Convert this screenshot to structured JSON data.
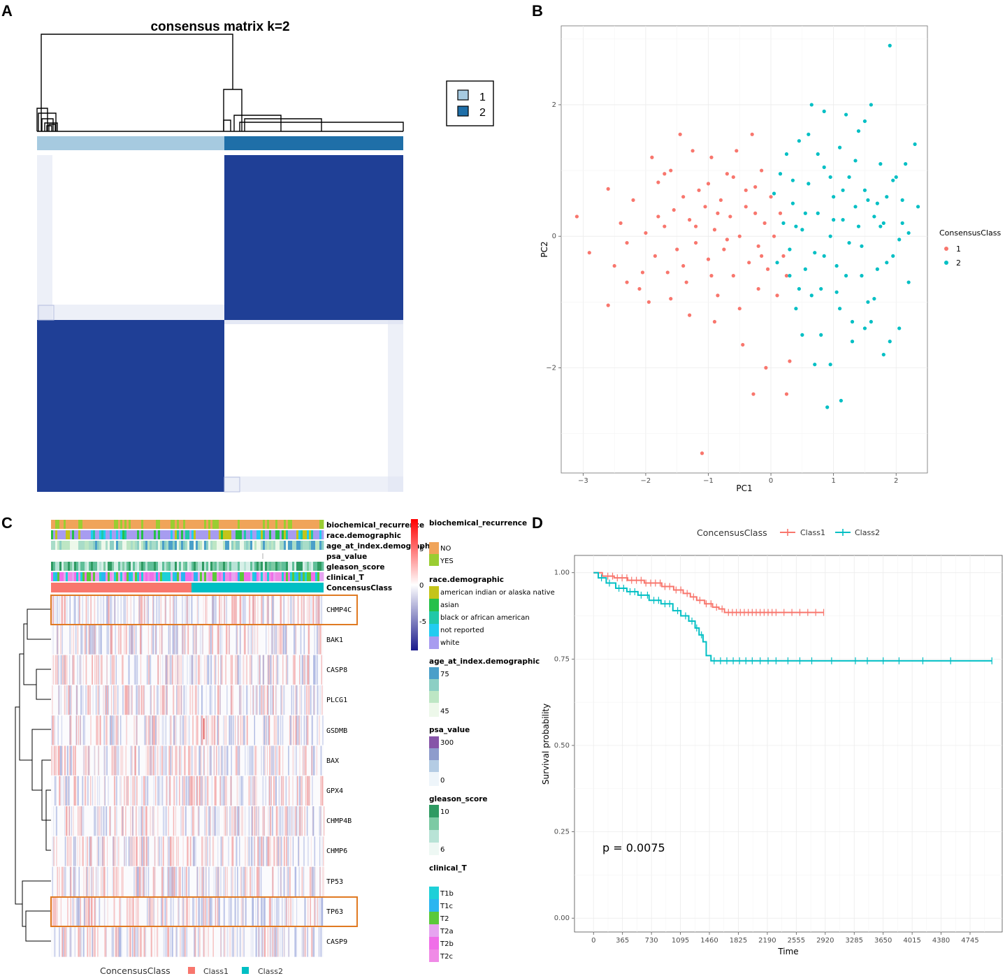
{
  "panel_labels": [
    "A",
    "B",
    "C",
    "D"
  ],
  "chart_data": [
    {
      "type": "heatmap",
      "panel": "A",
      "title": "consensus matrix k=2",
      "clusters": [
        "1",
        "2"
      ],
      "cluster_colors": [
        "#a6cae0",
        "#1f6fa8"
      ],
      "matrix_color": "#1f3f96",
      "consensus": [
        [
          0,
          1
        ],
        [
          1,
          0
        ]
      ],
      "legend": [
        "1",
        "2"
      ]
    },
    {
      "type": "scatter",
      "panel": "B",
      "xlabel": "PC1",
      "ylabel": "PC2",
      "xticks": [
        "-3",
        "-2",
        "-1",
        "0",
        "1",
        "2"
      ],
      "yticks": [
        "-2",
        "0",
        "2"
      ],
      "xlim": [
        -3.35,
        2.5
      ],
      "ylim": [
        -3.6,
        3.2
      ],
      "legend_title": "ConsensusClass",
      "series": [
        {
          "name": "1",
          "color": "#f8766d",
          "points": [
            [
              -3.1,
              0.3
            ],
            [
              -2.9,
              -0.25
            ],
            [
              -2.6,
              0.72
            ],
            [
              -2.5,
              -0.45
            ],
            [
              -2.4,
              0.2
            ],
            [
              -2.3,
              -0.1
            ],
            [
              -2.2,
              0.55
            ],
            [
              -2.1,
              -0.8
            ],
            [
              -2.0,
              0.05
            ],
            [
              -1.9,
              1.2
            ],
            [
              -1.85,
              -0.3
            ],
            [
              -1.8,
              0.82
            ],
            [
              -1.7,
              0.15
            ],
            [
              -1.65,
              -0.55
            ],
            [
              -1.6,
              1.0
            ],
            [
              -1.55,
              0.4
            ],
            [
              -1.5,
              -0.2
            ],
            [
              -1.45,
              1.55
            ],
            [
              -1.4,
              0.6
            ],
            [
              -1.35,
              -0.7
            ],
            [
              -1.3,
              0.25
            ],
            [
              -1.25,
              1.3
            ],
            [
              -1.2,
              -0.1
            ],
            [
              -1.15,
              0.7
            ],
            [
              -1.1,
              -3.3
            ],
            [
              -1.05,
              0.45
            ],
            [
              -1.0,
              -0.35
            ],
            [
              -0.95,
              1.2
            ],
            [
              -0.9,
              0.1
            ],
            [
              -0.85,
              -0.9
            ],
            [
              -0.8,
              0.55
            ],
            [
              -0.75,
              -0.2
            ],
            [
              -0.7,
              0.95
            ],
            [
              -0.65,
              0.3
            ],
            [
              -0.6,
              -0.6
            ],
            [
              -0.55,
              1.3
            ],
            [
              -0.5,
              0.0
            ],
            [
              -0.45,
              -1.65
            ],
            [
              -0.4,
              0.7
            ],
            [
              -0.35,
              -0.4
            ],
            [
              -0.3,
              1.55
            ],
            [
              -0.28,
              -2.4
            ],
            [
              -0.25,
              0.35
            ],
            [
              -0.2,
              -0.8
            ],
            [
              -0.15,
              1.0
            ],
            [
              -0.1,
              0.2
            ],
            [
              -0.08,
              -2.0
            ],
            [
              -0.05,
              -0.5
            ],
            [
              0.0,
              0.6
            ],
            [
              0.05,
              0.0
            ],
            [
              0.1,
              -0.9
            ],
            [
              0.15,
              0.35
            ],
            [
              0.2,
              -0.3
            ],
            [
              -2.6,
              -1.05
            ],
            [
              -1.95,
              -1.0
            ],
            [
              -1.6,
              -0.95
            ],
            [
              -1.3,
              -1.2
            ],
            [
              -0.95,
              -0.6
            ],
            [
              -0.7,
              -0.05
            ],
            [
              -0.4,
              0.45
            ],
            [
              -0.2,
              -0.15
            ],
            [
              -0.6,
              0.9
            ],
            [
              -1.8,
              0.3
            ],
            [
              -2.3,
              -0.7
            ],
            [
              0.25,
              -0.6
            ],
            [
              0.3,
              -1.9
            ],
            [
              0.25,
              -2.4
            ],
            [
              -0.9,
              -1.3
            ],
            [
              -1.4,
              -0.45
            ],
            [
              -1.0,
              0.8
            ],
            [
              -0.5,
              -1.1
            ],
            [
              -0.25,
              0.75
            ],
            [
              -1.7,
              0.95
            ],
            [
              -2.05,
              -0.55
            ],
            [
              -1.2,
              0.15
            ],
            [
              -0.85,
              0.35
            ],
            [
              -0.15,
              -0.3
            ]
          ]
        },
        {
          "name": "2",
          "color": "#00bfc4",
          "points": [
            [
              0.05,
              0.65
            ],
            [
              0.1,
              -0.4
            ],
            [
              0.15,
              0.95
            ],
            [
              0.2,
              0.2
            ],
            [
              0.25,
              1.25
            ],
            [
              0.3,
              -0.2
            ],
            [
              0.35,
              0.5
            ],
            [
              0.4,
              -1.1
            ],
            [
              0.45,
              1.45
            ],
            [
              0.5,
              0.1
            ],
            [
              0.55,
              -0.5
            ],
            [
              0.6,
              0.8
            ],
            [
              0.65,
              2.0
            ],
            [
              0.7,
              -0.25
            ],
            [
              0.75,
              0.35
            ],
            [
              0.8,
              -1.5
            ],
            [
              0.85,
              1.05
            ],
            [
              0.9,
              -2.6
            ],
            [
              0.95,
              0.0
            ],
            [
              1.0,
              0.6
            ],
            [
              1.05,
              -0.85
            ],
            [
              1.1,
              1.35
            ],
            [
              1.12,
              -2.5
            ],
            [
              1.15,
              0.25
            ],
            [
              1.2,
              -0.6
            ],
            [
              1.25,
              0.9
            ],
            [
              1.3,
              -1.3
            ],
            [
              1.35,
              0.45
            ],
            [
              1.4,
              1.6
            ],
            [
              1.45,
              -0.15
            ],
            [
              1.5,
              0.7
            ],
            [
              1.55,
              -1.0
            ],
            [
              1.6,
              2.0
            ],
            [
              1.65,
              0.3
            ],
            [
              1.7,
              -0.5
            ],
            [
              1.75,
              1.1
            ],
            [
              1.8,
              -1.8
            ],
            [
              1.85,
              0.6
            ],
            [
              1.9,
              2.9
            ],
            [
              1.95,
              -0.3
            ],
            [
              2.0,
              0.9
            ],
            [
              2.05,
              -1.4
            ],
            [
              2.1,
              0.2
            ],
            [
              2.15,
              1.1
            ],
            [
              2.2,
              -0.7
            ],
            [
              2.3,
              1.4
            ],
            [
              2.35,
              0.45
            ],
            [
              0.35,
              0.85
            ],
            [
              0.55,
              0.35
            ],
            [
              0.75,
              1.25
            ],
            [
              0.95,
              0.9
            ],
            [
              1.15,
              0.7
            ],
            [
              1.35,
              1.15
            ],
            [
              1.55,
              0.55
            ],
            [
              1.75,
              0.15
            ],
            [
              1.95,
              0.85
            ],
            [
              0.45,
              -0.8
            ],
            [
              0.65,
              -0.9
            ],
            [
              0.85,
              -0.3
            ],
            [
              1.05,
              -0.45
            ],
            [
              1.25,
              -0.1
            ],
            [
              1.45,
              -0.6
            ],
            [
              1.65,
              -0.95
            ],
            [
              1.85,
              -0.4
            ],
            [
              2.05,
              -0.05
            ],
            [
              0.3,
              -0.6
            ],
            [
              0.5,
              -1.5
            ],
            [
              0.7,
              -1.95
            ],
            [
              0.95,
              -1.95
            ],
            [
              1.3,
              -1.6
            ],
            [
              1.6,
              -1.3
            ],
            [
              1.9,
              -1.6
            ],
            [
              0.6,
              1.55
            ],
            [
              0.85,
              1.9
            ],
            [
              1.2,
              1.85
            ],
            [
              1.5,
              1.75
            ],
            [
              1.8,
              0.2
            ],
            [
              2.2,
              0.05
            ],
            [
              0.4,
              0.15
            ],
            [
              1.0,
              0.25
            ],
            [
              1.4,
              0.15
            ],
            [
              1.7,
              0.5
            ],
            [
              2.1,
              0.55
            ],
            [
              1.1,
              -1.1
            ],
            [
              1.5,
              -1.4
            ],
            [
              0.8,
              -0.8
            ]
          ]
        }
      ]
    },
    {
      "type": "heatmap",
      "panel": "C",
      "genes": [
        "CHMP4C",
        "BAK1",
        "CASP8",
        "PLCG1",
        "GSDMB",
        "BAX",
        "GPX4",
        "CHMP4B",
        "CHMP6",
        "TP53",
        "TP63",
        "CASP9"
      ],
      "highlighted_genes": [
        "CHMP4C",
        "TP63"
      ],
      "annotation_tracks": [
        "biochemical_recurrence",
        "race.demographic",
        "age_at_index.demographic",
        "psa_value",
        "gleason_score",
        "clinical_T",
        "ConcensusClass"
      ],
      "colorbar_ticks": [
        "5",
        "0",
        "-5"
      ],
      "legends": {
        "biochemical_recurrence": {
          "title": "biochemical_recurrence",
          "items": [
            "NO",
            "YES"
          ],
          "colors": [
            "#f0a45a",
            "#9acd32"
          ]
        },
        "race": {
          "title": "race.demographic",
          "items": [
            "american indian or alaska native",
            "asian",
            "black or african american",
            "not reported",
            "white"
          ],
          "colors": [
            "#c4c41a",
            "#26c04a",
            "#20c8a8",
            "#22ccf0",
            "#a79cf0"
          ]
        },
        "age": {
          "title": "age_at_index.demographic",
          "labels": [
            "75",
            "45"
          ]
        },
        "psa": {
          "title": "psa_value",
          "labels": [
            "300",
            "0"
          ]
        },
        "gleason": {
          "title": "gleason_score",
          "labels": [
            "10",
            "6"
          ]
        },
        "clinical": {
          "title": "clinical_T",
          "items": [
            "T1b",
            "T1c",
            "T2",
            "T2a",
            "T2b",
            "T2c"
          ],
          "colors": [
            "#1ed0d8",
            "#2bb5f0",
            "#5ac93a",
            "#e6a4f0",
            "#f06ee8",
            "#f08ae6"
          ]
        }
      },
      "bottom_legend": {
        "title": "ConcensusClass",
        "items": [
          "Class1",
          "Class2"
        ],
        "colors": [
          "#f8766d",
          "#00bfc4"
        ]
      }
    },
    {
      "type": "line",
      "panel": "D",
      "xlabel": "Time",
      "ylabel": "Survival probability",
      "xticks": [
        0,
        365,
        730,
        1095,
        1460,
        1825,
        2190,
        2555,
        2920,
        3285,
        3650,
        4015,
        4380,
        4745
      ],
      "yticks": [
        "0.00",
        "0.25",
        "0.50",
        "0.75",
        "1.00"
      ],
      "xlim": [
        -240,
        5150
      ],
      "ylim": [
        -0.04,
        1.05
      ],
      "legend_title": "ConcensusClass",
      "annotation": "p = 0.0075",
      "series": [
        {
          "name": "Class1",
          "color": "#f8766d",
          "steps": [
            [
              0,
              1.0
            ],
            [
              110,
              0.99
            ],
            [
              260,
              0.985
            ],
            [
              430,
              0.978
            ],
            [
              640,
              0.97
            ],
            [
              860,
              0.96
            ],
            [
              1010,
              0.95
            ],
            [
              1130,
              0.94
            ],
            [
              1220,
              0.93
            ],
            [
              1300,
              0.92
            ],
            [
              1400,
              0.91
            ],
            [
              1500,
              0.9
            ],
            [
              1580,
              0.895
            ],
            [
              1650,
              0.885
            ],
            [
              2900,
              0.885
            ]
          ],
          "censor": [
            180,
            240,
            300,
            360,
            420,
            480,
            540,
            600,
            660,
            720,
            780,
            840,
            900,
            960,
            1040,
            1100,
            1180,
            1260,
            1340,
            1420,
            1480,
            1550,
            1620,
            1700,
            1750,
            1800,
            1850,
            1900,
            1950,
            2000,
            2050,
            2100,
            2150,
            2200,
            2250,
            2300,
            2400,
            2500,
            2600,
            2700,
            2800,
            2900
          ]
        },
        {
          "name": "Class2",
          "color": "#00bfc4",
          "steps": [
            [
              0,
              1.0
            ],
            [
              60,
              0.985
            ],
            [
              160,
              0.97
            ],
            [
              280,
              0.955
            ],
            [
              420,
              0.945
            ],
            [
              560,
              0.935
            ],
            [
              700,
              0.92
            ],
            [
              850,
              0.91
            ],
            [
              1000,
              0.89
            ],
            [
              1100,
              0.875
            ],
            [
              1200,
              0.86
            ],
            [
              1280,
              0.84
            ],
            [
              1330,
              0.82
            ],
            [
              1380,
              0.8
            ],
            [
              1420,
              0.76
            ],
            [
              1480,
              0.745
            ],
            [
              5020,
              0.745
            ]
          ],
          "censor": [
            100,
            200,
            320,
            380,
            460,
            520,
            600,
            680,
            760,
            820,
            900,
            960,
            1060,
            1160,
            1240,
            1300,
            1360,
            1520,
            1600,
            1680,
            1760,
            1840,
            1920,
            2000,
            2100,
            2200,
            2300,
            2450,
            2600,
            2750,
            3000,
            3300,
            3450,
            3650,
            3850,
            4150,
            4500,
            5020
          ]
        }
      ]
    }
  ]
}
